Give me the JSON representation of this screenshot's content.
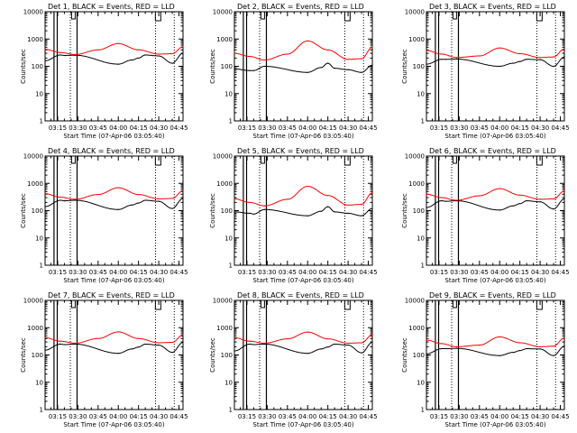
{
  "chart_data": {
    "type": "line",
    "x_tick_labels": [
      "03:15",
      "03:30",
      "03:45",
      "04:00",
      "04:15",
      "04:30",
      "04:45"
    ],
    "x_ticks_minutes_after_0300": [
      15,
      30,
      45,
      60,
      75,
      90,
      105
    ],
    "xlim_minutes_after_0300": [
      5.67,
      108
    ],
    "xlabel": "Start Time (07-Apr-06 03:05:40)",
    "ylabel": "Counts/sec",
    "yscale": "log",
    "ylim": [
      1,
      10000
    ],
    "y_tick_labels": [
      "1",
      "10",
      "100",
      "1000",
      "10000"
    ],
    "series_colors": {
      "events": "#000000",
      "lld": "#ff0000"
    },
    "markers": {
      "solid_lines_minutes": [
        12.3,
        14.7,
        29.4
      ],
      "dotted_lines_minutes": [
        24.4,
        87.6,
        101.5
      ],
      "flag_F_minutes": 28.0,
      "flag_C_minutes": 89.5
    },
    "panels": [
      {
        "title": "Det 1, BLACK = Events, RED = LLD",
        "events": {
          "x": [
            5.67,
            17,
            20,
            28,
            60,
            70,
            75,
            80,
            90,
            100,
            108
          ],
          "y": [
            160,
            260,
            250,
            255,
            120,
            170,
            200,
            260,
            240,
            130,
            300
          ]
        },
        "lld": {
          "x": [
            5.67,
            17,
            28,
            45,
            60,
            75,
            90,
            100,
            108
          ],
          "y": [
            420,
            320,
            270,
            400,
            680,
            400,
            280,
            290,
            520
          ]
        }
      },
      {
        "title": "Det 2, BLACK = Events, RED = LLD",
        "events": {
          "x": [
            5.67,
            17,
            20,
            28,
            60,
            70,
            75,
            80,
            90,
            100,
            108
          ],
          "y": [
            80,
            70,
            70,
            100,
            60,
            90,
            130,
            85,
            75,
            60,
            110
          ]
        },
        "lld": {
          "x": [
            5.67,
            17,
            28,
            45,
            60,
            75,
            90,
            100,
            108
          ],
          "y": [
            300,
            230,
            170,
            280,
            850,
            400,
            180,
            190,
            500
          ]
        }
      },
      {
        "title": "Det 3, BLACK = Events, RED = LLD",
        "events": {
          "x": [
            5.67,
            17,
            20,
            28,
            60,
            70,
            75,
            80,
            90,
            100,
            108
          ],
          "y": [
            120,
            180,
            180,
            185,
            100,
            130,
            150,
            180,
            175,
            100,
            220
          ]
        },
        "lld": {
          "x": [
            5.67,
            17,
            28,
            45,
            60,
            75,
            90,
            100,
            108
          ],
          "y": [
            380,
            280,
            210,
            240,
            470,
            290,
            210,
            220,
            430
          ]
        }
      },
      {
        "title": "Det 4, BLACK = Events, RED = LLD",
        "events": {
          "x": [
            5.67,
            17,
            20,
            28,
            60,
            70,
            75,
            80,
            90,
            100,
            108
          ],
          "y": [
            140,
            240,
            230,
            240,
            110,
            160,
            190,
            240,
            220,
            120,
            280
          ]
        },
        "lld": {
          "x": [
            5.67,
            17,
            28,
            45,
            60,
            75,
            90,
            100,
            108
          ],
          "y": [
            420,
            310,
            260,
            390,
            690,
            390,
            270,
            280,
            530
          ]
        }
      },
      {
        "title": "Det 5, BLACK = Events, RED = LLD",
        "events": {
          "x": [
            5.67,
            17,
            20,
            28,
            60,
            70,
            75,
            80,
            90,
            100,
            108
          ],
          "y": [
            90,
            80,
            75,
            110,
            65,
            95,
            140,
            90,
            80,
            65,
            120
          ]
        },
        "lld": {
          "x": [
            5.67,
            17,
            28,
            45,
            60,
            75,
            90,
            100,
            108
          ],
          "y": [
            270,
            200,
            150,
            260,
            780,
            360,
            160,
            170,
            450
          ]
        }
      },
      {
        "title": "Det 6, BLACK = Events, RED = LLD",
        "events": {
          "x": [
            5.67,
            17,
            20,
            28,
            60,
            70,
            75,
            80,
            90,
            100,
            108
          ],
          "y": [
            130,
            230,
            220,
            230,
            105,
            150,
            180,
            230,
            210,
            115,
            270
          ]
        },
        "lld": {
          "x": [
            5.67,
            17,
            28,
            45,
            60,
            75,
            90,
            100,
            108
          ],
          "y": [
            400,
            300,
            240,
            350,
            640,
            370,
            260,
            270,
            520
          ]
        }
      },
      {
        "title": "Det 7, BLACK = Events, RED = LLD",
        "events": {
          "x": [
            5.67,
            17,
            20,
            28,
            60,
            70,
            75,
            80,
            90,
            100,
            108
          ],
          "y": [
            150,
            250,
            240,
            250,
            115,
            165,
            195,
            250,
            230,
            125,
            290
          ]
        },
        "lld": {
          "x": [
            5.67,
            17,
            28,
            45,
            60,
            75,
            90,
            100,
            108
          ],
          "y": [
            430,
            320,
            270,
            400,
            700,
            400,
            280,
            290,
            540
          ]
        }
      },
      {
        "title": "Det 8, BLACK = Events, RED = LLD",
        "events": {
          "x": [
            5.67,
            17,
            20,
            28,
            60,
            70,
            75,
            80,
            90,
            100,
            108
          ],
          "y": [
            140,
            250,
            240,
            250,
            115,
            165,
            195,
            250,
            230,
            120,
            290
          ]
        },
        "lld": {
          "x": [
            5.67,
            17,
            28,
            45,
            60,
            75,
            90,
            100,
            108
          ],
          "y": [
            430,
            320,
            270,
            390,
            690,
            390,
            270,
            280,
            550
          ]
        }
      },
      {
        "title": "Det 9, BLACK = Events, RED = LLD",
        "events": {
          "x": [
            5.67,
            17,
            20,
            28,
            60,
            70,
            75,
            80,
            90,
            100,
            108
          ],
          "y": [
            110,
            170,
            170,
            175,
            95,
            125,
            145,
            170,
            165,
            95,
            210
          ]
        },
        "lld": {
          "x": [
            5.67,
            17,
            28,
            45,
            60,
            75,
            90,
            100,
            108
          ],
          "y": [
            350,
            260,
            200,
            230,
            460,
            280,
            200,
            210,
            420
          ]
        }
      }
    ]
  }
}
